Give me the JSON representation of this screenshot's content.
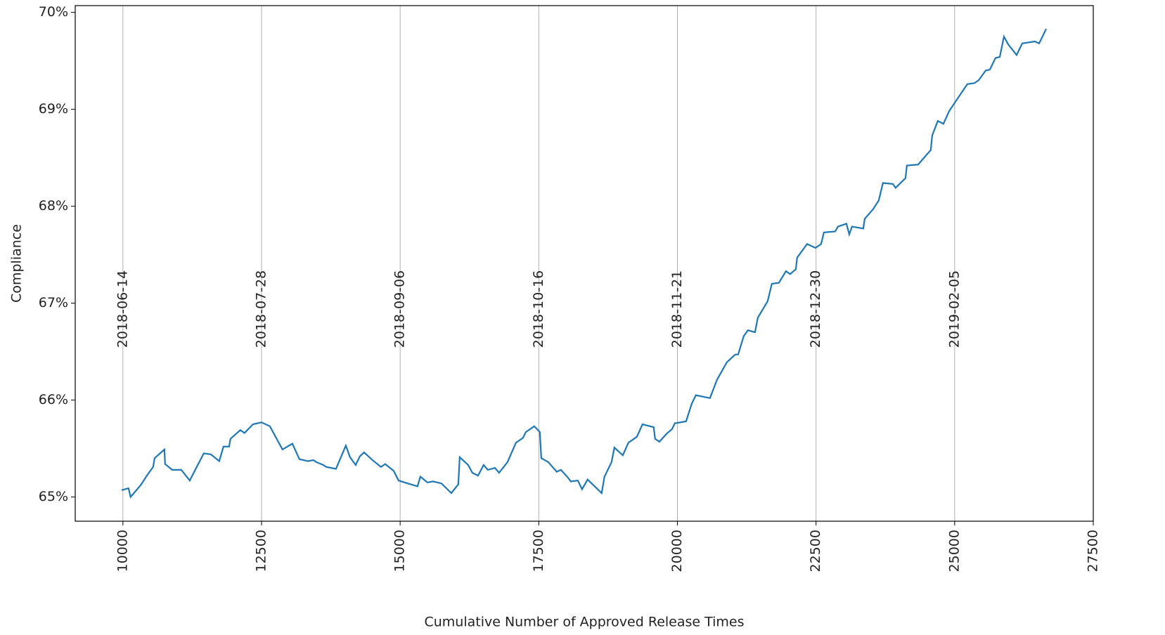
{
  "chart_data": {
    "type": "line",
    "xlabel": "Cumulative Number of Approved Release Times",
    "ylabel": "Compliance",
    "x": [
      9975,
      10101,
      10139,
      10317,
      10444,
      10545,
      10571,
      10748,
      10761,
      10888,
      11052,
      11205,
      11458,
      11585,
      11737,
      11813,
      11915,
      11940,
      12117,
      12193,
      12346,
      12498,
      12650,
      12878,
      13056,
      13183,
      13335,
      13437,
      13487,
      13614,
      13665,
      13842,
      14020,
      14096,
      14198,
      14274,
      14350,
      14502,
      14654,
      14730,
      14882,
      14971,
      15135,
      15313,
      15364,
      15491,
      15592,
      15744,
      15922,
      16048,
      16074,
      16226,
      16302,
      16404,
      16505,
      16581,
      16708,
      16784,
      16936,
      17088,
      17215,
      17266,
      17418,
      17519,
      17545,
      17671,
      17823,
      17899,
      18026,
      18077,
      18204,
      18280,
      18381,
      18634,
      18685,
      18812,
      18863,
      19015,
      19116,
      19268,
      19370,
      19572,
      19598,
      19674,
      19801,
      19902,
      19953,
      20156,
      20257,
      20333,
      20587,
      20714,
      20892,
      21044,
      21095,
      21196,
      21272,
      21399,
      21450,
      21627,
      21703,
      21830,
      21957,
      22033,
      22135,
      22160,
      22338,
      22490,
      22591,
      22642,
      22845,
      22896,
      23048,
      23099,
      23149,
      23352,
      23378,
      23530,
      23631,
      23707,
      23885,
      23935,
      24113,
      24138,
      24341,
      24569,
      24595,
      24696,
      24797,
      24899,
      25051,
      25229,
      25356,
      25432,
      25559,
      25635,
      25737,
      25813,
      25889,
      25965,
      26117,
      26219,
      26447,
      26523,
      26650
    ],
    "series": [
      {
        "color": "#1f77b4",
        "values": [
          65.07,
          65.09,
          65.0,
          65.12,
          65.23,
          65.31,
          65.4,
          65.49,
          65.34,
          65.28,
          65.28,
          65.17,
          65.45,
          65.44,
          65.37,
          65.52,
          65.52,
          65.6,
          65.69,
          65.66,
          65.75,
          65.77,
          65.73,
          65.49,
          65.55,
          65.39,
          65.37,
          65.38,
          65.36,
          65.33,
          65.31,
          65.29,
          65.53,
          65.41,
          65.33,
          65.42,
          65.46,
          65.38,
          65.31,
          65.34,
          65.27,
          65.17,
          65.14,
          65.11,
          65.21,
          65.15,
          65.16,
          65.14,
          65.04,
          65.13,
          65.41,
          65.33,
          65.25,
          65.22,
          65.33,
          65.28,
          65.3,
          65.25,
          65.36,
          65.56,
          65.61,
          65.67,
          65.73,
          65.67,
          65.4,
          65.36,
          65.26,
          65.28,
          65.2,
          65.16,
          65.17,
          65.08,
          65.18,
          65.04,
          65.21,
          65.36,
          65.51,
          65.43,
          65.56,
          65.62,
          65.75,
          65.72,
          65.6,
          65.57,
          65.65,
          65.7,
          65.76,
          65.78,
          65.96,
          66.05,
          66.02,
          66.21,
          66.39,
          66.47,
          66.47,
          66.66,
          66.72,
          66.7,
          66.85,
          67.02,
          67.2,
          67.21,
          67.33,
          67.3,
          67.35,
          67.47,
          67.61,
          67.57,
          67.61,
          67.73,
          67.74,
          67.79,
          67.82,
          67.71,
          67.79,
          67.77,
          67.87,
          67.97,
          68.06,
          68.24,
          68.23,
          68.19,
          68.29,
          68.42,
          68.43,
          68.58,
          68.73,
          68.88,
          68.85,
          68.98,
          69.11,
          69.26,
          69.27,
          69.3,
          69.4,
          69.41,
          69.53,
          69.54,
          69.75,
          69.67,
          69.56,
          69.68,
          69.7,
          69.68,
          69.83
        ]
      }
    ],
    "xlim": [
      9140,
      27500
    ],
    "xticks": [
      10000,
      12500,
      15000,
      17500,
      20000,
      22500,
      25000,
      27500
    ],
    "ylim": [
      64.75,
      70.07
    ],
    "yticks": [
      {
        "value": 65,
        "label": "65%"
      },
      {
        "value": 66,
        "label": "66%"
      },
      {
        "value": 67,
        "label": "67%"
      },
      {
        "value": 68,
        "label": "68%"
      },
      {
        "value": 69,
        "label": "69%"
      },
      {
        "value": 70,
        "label": "70%"
      }
    ],
    "annotations": [
      {
        "x": 10000,
        "label": "2018-06-14"
      },
      {
        "x": 12500,
        "label": "2018-07-28"
      },
      {
        "x": 15000,
        "label": "2018-09-06"
      },
      {
        "x": 17500,
        "label": "2018-10-16"
      },
      {
        "x": 20000,
        "label": "2018-11-21"
      },
      {
        "x": 22500,
        "label": "2018-12-30"
      },
      {
        "x": 25000,
        "label": "2019-02-05"
      }
    ]
  }
}
